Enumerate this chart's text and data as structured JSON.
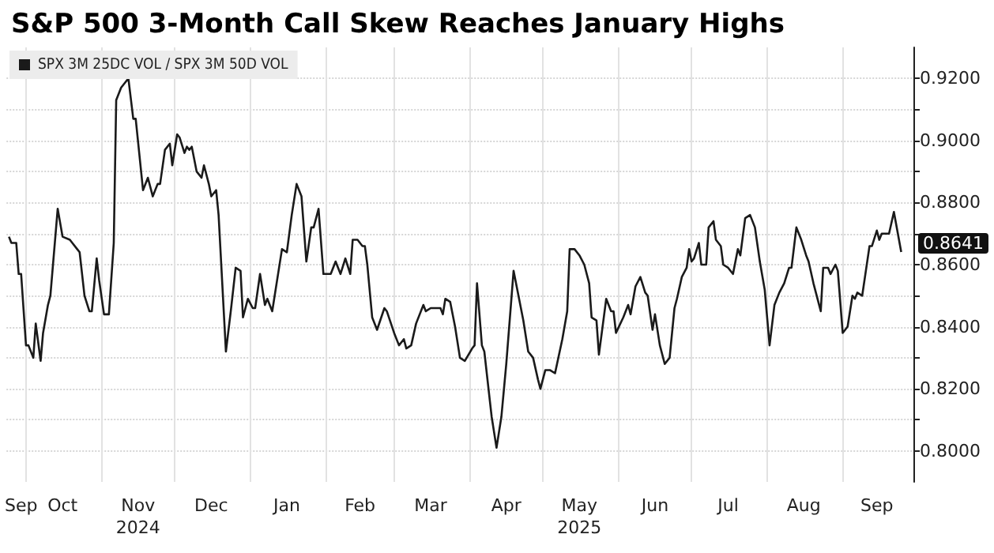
{
  "chart_data": {
    "type": "line",
    "title": "S&P 500 3-Month Call Skew Reaches January Highs",
    "x": [
      "2024-09-24",
      "2024-09-25",
      "2024-09-27",
      "2024-09-28",
      "2024-09-29",
      "2024-10-01",
      "2024-10-02",
      "2024-10-04",
      "2024-10-05",
      "2024-10-07",
      "2024-10-08",
      "2024-10-10",
      "2024-10-11",
      "2024-10-14",
      "2024-10-16",
      "2024-10-19",
      "2024-10-20",
      "2024-10-22",
      "2024-10-23",
      "2024-10-25",
      "2024-10-27",
      "2024-10-28",
      "2024-10-30",
      "2024-10-31",
      "2024-11-02",
      "2024-11-04",
      "2024-11-06",
      "2024-11-07",
      "2024-11-09",
      "2024-11-12",
      "2024-11-14",
      "2024-11-15",
      "2024-11-18",
      "2024-11-20",
      "2024-11-22",
      "2024-11-24",
      "2024-11-25",
      "2024-11-27",
      "2024-11-29",
      "2024-11-30",
      "2024-12-02",
      "2024-12-03",
      "2024-12-05",
      "2024-12-06",
      "2024-12-07",
      "2024-12-08",
      "2024-12-10",
      "2024-12-12",
      "2024-12-13",
      "2024-12-15",
      "2024-12-16",
      "2024-12-18",
      "2024-12-19",
      "2024-12-22",
      "2024-12-24",
      "2024-12-26",
      "2024-12-28",
      "2024-12-29",
      "2024-12-31",
      "2025-01-02",
      "2025-01-03",
      "2025-01-05",
      "2025-01-07",
      "2025-01-08",
      "2025-01-10",
      "2025-01-12",
      "2025-01-14",
      "2025-01-16",
      "2025-01-18",
      "2025-01-20",
      "2025-01-22",
      "2025-01-24",
      "2025-01-26",
      "2025-01-27",
      "2025-01-29",
      "2025-01-31",
      "2025-02-03",
      "2025-02-05",
      "2025-02-07",
      "2025-02-09",
      "2025-02-11",
      "2025-02-12",
      "2025-02-14",
      "2025-02-16",
      "2025-02-17",
      "2025-02-18",
      "2025-02-20",
      "2025-02-22",
      "2025-02-25",
      "2025-02-26",
      "2025-03-01",
      "2025-03-03",
      "2025-03-05",
      "2025-03-06",
      "2025-03-08",
      "2025-03-10",
      "2025-03-13",
      "2025-03-14",
      "2025-03-16",
      "2025-03-18",
      "2025-03-20",
      "2025-03-21",
      "2025-03-22",
      "2025-03-24",
      "2025-03-26",
      "2025-03-28",
      "2025-03-30",
      "2025-04-02",
      "2025-04-03",
      "2025-04-04",
      "2025-04-06",
      "2025-04-07",
      "2025-04-10",
      "2025-04-12",
      "2025-04-14",
      "2025-04-16",
      "2025-04-19",
      "2025-04-21",
      "2025-04-23",
      "2025-04-25",
      "2025-04-27",
      "2025-04-29",
      "2025-04-30",
      "2025-05-02",
      "2025-05-04",
      "2025-05-06",
      "2025-05-09",
      "2025-05-11",
      "2025-05-12",
      "2025-05-14",
      "2025-05-16",
      "2025-05-18",
      "2025-05-20",
      "2025-05-21",
      "2025-05-23",
      "2025-05-24",
      "2025-05-27",
      "2025-05-29",
      "2025-05-30",
      "2025-05-31",
      "2025-06-03",
      "2025-06-05",
      "2025-06-06",
      "2025-06-08",
      "2025-06-10",
      "2025-06-12",
      "2025-06-13",
      "2025-06-15",
      "2025-06-16",
      "2025-06-18",
      "2025-06-20",
      "2025-06-22",
      "2025-06-24",
      "2025-06-25",
      "2025-06-27",
      "2025-06-29",
      "2025-06-30",
      "2025-07-01",
      "2025-07-02",
      "2025-07-04",
      "2025-07-05",
      "2025-07-07",
      "2025-07-08",
      "2025-07-10",
      "2025-07-11",
      "2025-07-13",
      "2025-07-14",
      "2025-07-16",
      "2025-07-18",
      "2025-07-20",
      "2025-07-21",
      "2025-07-23",
      "2025-07-25",
      "2025-07-27",
      "2025-07-29",
      "2025-07-31",
      "2025-08-02",
      "2025-08-04",
      "2025-08-06",
      "2025-08-08",
      "2025-08-10",
      "2025-08-11",
      "2025-08-13",
      "2025-08-15",
      "2025-08-17",
      "2025-08-18",
      "2025-08-20",
      "2025-08-23",
      "2025-08-24",
      "2025-08-26",
      "2025-08-27",
      "2025-08-29",
      "2025-08-30",
      "2025-09-01",
      "2025-09-03",
      "2025-09-05",
      "2025-09-06",
      "2025-09-07",
      "2025-09-09",
      "2025-09-12",
      "2025-09-13",
      "2025-09-15",
      "2025-09-16",
      "2025-09-17",
      "2025-09-20",
      "2025-09-22",
      "2025-09-25"
    ],
    "series": [
      {
        "name": "SPX 3M 25DC VOL / SPX 3M 50D VOL",
        "color": "#1a1a1a",
        "values": [
          0.869,
          0.867,
          0.867,
          0.857,
          0.857,
          0.834,
          0.834,
          0.83,
          0.841,
          0.829,
          0.838,
          0.847,
          0.85,
          0.878,
          0.869,
          0.868,
          0.867,
          0.865,
          0.864,
          0.85,
          0.845,
          0.845,
          0.862,
          0.855,
          0.844,
          0.844,
          0.867,
          0.913,
          0.917,
          0.92,
          0.907,
          0.907,
          0.884,
          0.888,
          0.882,
          0.886,
          0.886,
          0.897,
          0.899,
          0.892,
          0.902,
          0.901,
          0.896,
          0.898,
          0.897,
          0.898,
          0.89,
          0.888,
          0.892,
          0.886,
          0.882,
          0.884,
          0.876,
          0.832,
          0.845,
          0.859,
          0.858,
          0.843,
          0.849,
          0.846,
          0.846,
          0.857,
          0.847,
          0.849,
          0.845,
          0.855,
          0.865,
          0.864,
          0.876,
          0.886,
          0.882,
          0.861,
          0.872,
          0.872,
          0.878,
          0.857,
          0.857,
          0.861,
          0.857,
          0.862,
          0.857,
          0.868,
          0.868,
          0.866,
          0.866,
          0.86,
          0.843,
          0.839,
          0.846,
          0.845,
          0.838,
          0.834,
          0.836,
          0.833,
          0.834,
          0.841,
          0.847,
          0.845,
          0.846,
          0.846,
          0.846,
          0.844,
          0.849,
          0.848,
          0.84,
          0.83,
          0.829,
          0.833,
          0.834,
          0.854,
          0.834,
          0.832,
          0.811,
          0.801,
          0.811,
          0.828,
          0.858,
          0.85,
          0.842,
          0.832,
          0.83,
          0.823,
          0.82,
          0.826,
          0.826,
          0.825,
          0.836,
          0.845,
          0.865,
          0.865,
          0.863,
          0.86,
          0.854,
          0.843,
          0.842,
          0.831,
          0.849,
          0.845,
          0.845,
          0.838,
          0.843,
          0.847,
          0.844,
          0.853,
          0.856,
          0.851,
          0.85,
          0.839,
          0.844,
          0.834,
          0.828,
          0.83,
          0.846,
          0.849,
          0.856,
          0.859,
          0.865,
          0.861,
          0.862,
          0.867,
          0.86,
          0.86,
          0.872,
          0.874,
          0.868,
          0.866,
          0.86,
          0.859,
          0.857,
          0.865,
          0.863,
          0.875,
          0.876,
          0.872,
          0.861,
          0.852,
          0.834,
          0.847,
          0.851,
          0.854,
          0.859,
          0.859,
          0.872,
          0.868,
          0.863,
          0.861,
          0.854,
          0.845,
          0.859,
          0.859,
          0.857,
          0.86,
          0.858,
          0.838,
          0.84,
          0.85,
          0.849,
          0.851,
          0.85,
          0.866,
          0.866,
          0.871,
          0.868,
          0.87,
          0.87,
          0.877,
          0.8641
        ]
      }
    ],
    "xlim": [
      "2024-09-23",
      "2025-09-30"
    ],
    "xticks": [
      {
        "value": "2024-10-01",
        "label": null
      },
      {
        "value": "2024-11-01",
        "label": null
      },
      {
        "value": "2024-12-01",
        "label": null
      },
      {
        "value": "2025-01-01",
        "label": null
      },
      {
        "value": "2025-02-01",
        "label": null
      },
      {
        "value": "2025-03-01",
        "label": null
      },
      {
        "value": "2025-04-01",
        "label": null
      },
      {
        "value": "2025-05-01",
        "label": null
      },
      {
        "value": "2025-06-01",
        "label": null
      },
      {
        "value": "2025-07-01",
        "label": null
      },
      {
        "value": "2025-08-01",
        "label": null
      },
      {
        "value": "2025-09-01",
        "label": null
      },
      {
        "value": "2024-09-29",
        "label": "Sep"
      },
      {
        "value": "2024-10-16",
        "label": "Oct"
      },
      {
        "value": "2024-11-16",
        "label": "Nov\n2024"
      },
      {
        "value": "2024-12-16",
        "label": "Dec"
      },
      {
        "value": "2025-01-16",
        "label": "Jan"
      },
      {
        "value": "2025-02-15",
        "label": "Feb"
      },
      {
        "value": "2025-03-16",
        "label": "Mar"
      },
      {
        "value": "2025-04-16",
        "label": "Apr"
      },
      {
        "value": "2025-05-16",
        "label": "May\n2025"
      },
      {
        "value": "2025-06-16",
        "label": "Jun"
      },
      {
        "value": "2025-07-16",
        "label": "Jul"
      },
      {
        "value": "2025-08-16",
        "label": "Aug"
      },
      {
        "value": "2025-09-15",
        "label": "Sep"
      }
    ],
    "ylim": [
      0.79,
      0.93
    ],
    "yticks": [
      {
        "value": 0.8,
        "label": "0.8000"
      },
      {
        "value": 0.81,
        "label": null
      },
      {
        "value": 0.82,
        "label": "0.8200"
      },
      {
        "value": 0.83,
        "label": null
      },
      {
        "value": 0.84,
        "label": "0.8400"
      },
      {
        "value": 0.85,
        "label": null
      },
      {
        "value": 0.86,
        "label": "0.8600"
      },
      {
        "value": 0.87,
        "label": null
      },
      {
        "value": 0.88,
        "label": "0.8800"
      },
      {
        "value": 0.89,
        "label": null
      },
      {
        "value": 0.9,
        "label": "0.9000"
      },
      {
        "value": 0.91,
        "label": null
      },
      {
        "value": 0.92,
        "label": "0.9200"
      }
    ],
    "annotations": [
      {
        "text": "0.8641",
        "x": "2025-09-25",
        "y": 0.8641
      }
    ],
    "grid": true,
    "legend": "top left",
    "marker": "none",
    "line_style": "solid"
  }
}
